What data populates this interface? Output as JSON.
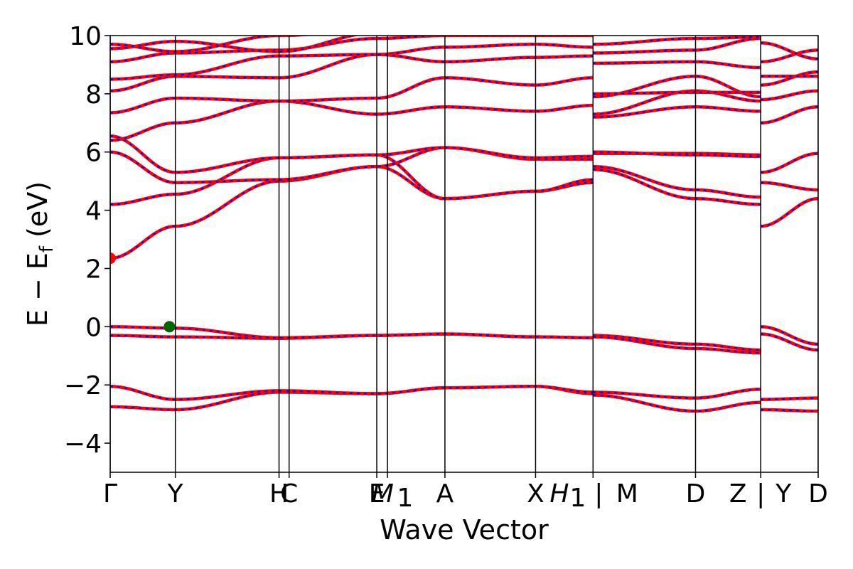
{
  "chart_data": {
    "type": "line",
    "title": "",
    "xlabel": "Wave Vector",
    "ylabel": "E − E_f (eV)",
    "ylabel_parts": {
      "main": "E − E",
      "sub": "f",
      "unit": " (eV)"
    },
    "ylim": [
      -5,
      10
    ],
    "yticks": [
      -4,
      -2,
      0,
      2,
      4,
      6,
      8,
      10
    ],
    "ytick_labels": [
      "−4",
      "−2",
      "0",
      "2",
      "4",
      "6",
      "8",
      "10"
    ],
    "xlim": [
      0,
      11.95
    ],
    "high_symmetry_points": [
      {
        "label": "Γ",
        "x": 0.0
      },
      {
        "label": "Y",
        "x": 1.1
      },
      {
        "label": "H",
        "x": 2.85
      },
      {
        "label": "C",
        "x": 3.02
      },
      {
        "label": "E",
        "x": 4.5
      },
      {
        "label": "M₁",
        "x": 4.68
      },
      {
        "label": "A",
        "x": 5.65
      },
      {
        "label": "X",
        "x": 7.18
      },
      {
        "label": "H₁ | M",
        "x": 8.15
      },
      {
        "label": "D",
        "x": 9.88
      },
      {
        "label": "Z | Y",
        "x": 10.98
      },
      {
        "label": "D",
        "x": 11.95
      }
    ],
    "tick_label_text": [
      "Γ",
      "Y",
      "H",
      "C",
      "E",
      "M",
      "1",
      "A",
      "X",
      "H",
      "1",
      "|",
      "M",
      "D",
      "Z",
      "|",
      "Y",
      "D"
    ],
    "series_style": {
      "up_color": "#ff0000",
      "down_color": "#0000ff",
      "down_dash": "4 6"
    },
    "markers": [
      {
        "name": "CBM",
        "x": 0.0,
        "y": 2.35,
        "color": "#ff0000"
      },
      {
        "name": "VBM",
        "x": 1.0,
        "y": 0.0,
        "color": "#006400"
      }
    ],
    "series": [
      {
        "values": [
          [
            0,
            -2.75
          ],
          [
            1.1,
            -2.85
          ],
          [
            2.85,
            -2.25
          ],
          [
            4.5,
            -2.3
          ],
          [
            5.65,
            -2.1
          ],
          [
            7.18,
            -2.05
          ],
          [
            8.15,
            -2.3
          ]
        ]
      },
      {
        "values": [
          [
            0,
            -2.05
          ],
          [
            1.1,
            -2.5
          ],
          [
            2.85,
            -2.2
          ],
          [
            4.5,
            -2.3
          ],
          [
            5.65,
            -2.1
          ],
          [
            7.18,
            -2.05
          ],
          [
            8.15,
            -2.25
          ]
        ]
      },
      {
        "values": [
          [
            0,
            -0.3
          ],
          [
            1.1,
            -0.35
          ],
          [
            2.85,
            -0.4
          ],
          [
            4.5,
            -0.3
          ],
          [
            5.65,
            -0.25
          ],
          [
            7.18,
            -0.35
          ],
          [
            8.15,
            -0.38
          ]
        ]
      },
      {
        "values": [
          [
            0,
            0.0
          ],
          [
            1.1,
            -0.05
          ],
          [
            2.85,
            -0.38
          ],
          [
            4.5,
            -0.3
          ],
          [
            5.65,
            -0.25
          ],
          [
            7.18,
            -0.35
          ],
          [
            8.15,
            -0.38
          ]
        ]
      },
      {
        "values": [
          [
            0,
            2.35
          ],
          [
            1.1,
            3.45
          ],
          [
            2.85,
            5.0
          ],
          [
            4.5,
            5.5
          ],
          [
            5.65,
            4.4
          ],
          [
            7.18,
            4.65
          ],
          [
            8.15,
            4.95
          ]
        ]
      },
      {
        "values": [
          [
            0,
            4.2
          ],
          [
            1.1,
            4.55
          ],
          [
            2.85,
            5.8
          ],
          [
            4.5,
            5.9
          ],
          [
            5.65,
            4.4
          ],
          [
            7.18,
            4.65
          ],
          [
            8.15,
            5.05
          ]
        ]
      },
      {
        "values": [
          [
            0,
            6.0
          ],
          [
            1.1,
            4.95
          ],
          [
            2.85,
            5.05
          ],
          [
            4.5,
            5.5
          ],
          [
            5.65,
            6.15
          ],
          [
            7.18,
            5.75
          ],
          [
            8.15,
            5.75
          ]
        ]
      },
      {
        "values": [
          [
            0,
            6.55
          ],
          [
            1.1,
            5.3
          ],
          [
            2.85,
            5.8
          ],
          [
            4.5,
            5.9
          ],
          [
            5.65,
            6.15
          ],
          [
            7.18,
            5.8
          ],
          [
            8.15,
            5.85
          ]
        ]
      },
      {
        "values": [
          [
            0,
            6.4
          ],
          [
            1.1,
            7.0
          ],
          [
            2.85,
            7.75
          ],
          [
            4.5,
            7.3
          ],
          [
            5.65,
            7.55
          ],
          [
            7.18,
            7.4
          ],
          [
            8.15,
            7.6
          ]
        ]
      },
      {
        "values": [
          [
            0,
            7.35
          ],
          [
            1.1,
            7.85
          ],
          [
            2.85,
            7.75
          ],
          [
            4.5,
            7.85
          ],
          [
            5.65,
            8.55
          ],
          [
            7.18,
            8.3
          ],
          [
            8.15,
            8.55
          ]
        ]
      },
      {
        "values": [
          [
            0,
            8.1
          ],
          [
            1.1,
            8.6
          ],
          [
            2.85,
            8.55
          ],
          [
            4.5,
            9.35
          ],
          [
            5.65,
            9.6
          ],
          [
            7.18,
            9.7
          ],
          [
            8.15,
            9.6
          ]
        ]
      },
      {
        "values": [
          [
            0,
            8.5
          ],
          [
            1.1,
            8.65
          ],
          [
            2.85,
            9.3
          ],
          [
            4.5,
            9.35
          ],
          [
            5.65,
            9.1
          ],
          [
            7.18,
            9.25
          ],
          [
            8.15,
            9.3
          ]
        ]
      },
      {
        "values": [
          [
            0,
            9.1
          ],
          [
            1.1,
            9.4
          ],
          [
            2.85,
            9.5
          ],
          [
            4.5,
            9.9
          ],
          [
            5.65,
            10.0
          ],
          [
            7.18,
            10.0
          ],
          [
            8.15,
            10.0
          ]
        ]
      },
      {
        "values": [
          [
            0,
            9.55
          ],
          [
            1.1,
            9.8
          ],
          [
            2.85,
            9.45
          ],
          [
            4.5,
            10.1
          ],
          [
            5.65,
            10.1
          ],
          [
            7.18,
            10.1
          ],
          [
            8.15,
            10.1
          ]
        ]
      },
      {
        "values": [
          [
            0,
            9.7
          ],
          [
            1.1,
            9.45
          ],
          [
            2.85,
            10.0
          ],
          [
            4.5,
            10.2
          ],
          [
            5.65,
            10.2
          ],
          [
            7.18,
            10.2
          ],
          [
            8.15,
            10.2
          ]
        ]
      },
      {
        "values": [
          [
            8.15,
            -2.25
          ],
          [
            9.88,
            -2.45
          ],
          [
            10.98,
            -2.15
          ]
        ]
      },
      {
        "values": [
          [
            8.15,
            -2.35
          ],
          [
            9.88,
            -2.9
          ],
          [
            10.98,
            -2.6
          ]
        ]
      },
      {
        "values": [
          [
            8.15,
            -0.3
          ],
          [
            9.88,
            -0.6
          ],
          [
            10.98,
            -0.8
          ]
        ]
      },
      {
        "values": [
          [
            8.15,
            -0.35
          ],
          [
            9.88,
            -0.75
          ],
          [
            10.98,
            -0.9
          ]
        ]
      },
      {
        "values": [
          [
            8.15,
            5.4
          ],
          [
            9.88,
            4.4
          ],
          [
            10.98,
            4.2
          ]
        ]
      },
      {
        "values": [
          [
            8.15,
            5.5
          ],
          [
            9.88,
            4.7
          ],
          [
            10.98,
            4.45
          ]
        ]
      },
      {
        "values": [
          [
            8.15,
            5.95
          ],
          [
            9.88,
            5.95
          ],
          [
            10.98,
            5.9
          ]
        ]
      },
      {
        "values": [
          [
            8.15,
            6.0
          ],
          [
            9.88,
            5.9
          ],
          [
            10.98,
            5.85
          ]
        ]
      },
      {
        "values": [
          [
            8.15,
            7.2
          ],
          [
            9.88,
            7.55
          ],
          [
            10.98,
            7.4
          ]
        ]
      },
      {
        "values": [
          [
            8.15,
            7.3
          ],
          [
            9.88,
            8.1
          ],
          [
            10.98,
            7.75
          ]
        ]
      },
      {
        "values": [
          [
            8.15,
            7.9
          ],
          [
            9.88,
            8.6
          ],
          [
            10.98,
            7.9
          ]
        ]
      },
      {
        "values": [
          [
            8.15,
            8.0
          ],
          [
            9.88,
            8.05
          ],
          [
            10.98,
            8.05
          ]
        ]
      },
      {
        "values": [
          [
            8.15,
            9.05
          ],
          [
            9.88,
            9.1
          ],
          [
            10.98,
            8.9
          ]
        ]
      },
      {
        "values": [
          [
            8.15,
            9.4
          ],
          [
            9.88,
            9.5
          ],
          [
            10.98,
            9.9
          ]
        ]
      },
      {
        "values": [
          [
            8.15,
            9.7
          ],
          [
            9.88,
            9.9
          ],
          [
            10.98,
            9.95
          ]
        ]
      },
      {
        "values": [
          [
            10.98,
            -2.5
          ],
          [
            11.95,
            -2.45
          ]
        ]
      },
      {
        "values": [
          [
            10.98,
            -2.85
          ],
          [
            11.95,
            -2.9
          ]
        ]
      },
      {
        "values": [
          [
            10.98,
            0.0
          ],
          [
            11.95,
            -0.6
          ]
        ]
      },
      {
        "values": [
          [
            10.98,
            -0.25
          ],
          [
            11.95,
            -0.8
          ]
        ]
      },
      {
        "values": [
          [
            10.98,
            3.45
          ],
          [
            11.95,
            4.4
          ]
        ]
      },
      {
        "values": [
          [
            10.98,
            4.95
          ],
          [
            11.95,
            4.7
          ]
        ]
      },
      {
        "values": [
          [
            10.98,
            5.3
          ],
          [
            11.95,
            5.95
          ]
        ]
      },
      {
        "values": [
          [
            10.98,
            7.0
          ],
          [
            11.95,
            7.55
          ]
        ]
      },
      {
        "values": [
          [
            10.98,
            7.8
          ],
          [
            11.95,
            8.1
          ]
        ]
      },
      {
        "values": [
          [
            10.98,
            8.3
          ],
          [
            11.95,
            8.75
          ]
        ]
      },
      {
        "values": [
          [
            10.98,
            8.6
          ],
          [
            11.95,
            8.6
          ]
        ]
      },
      {
        "values": [
          [
            10.98,
            9.1
          ],
          [
            11.95,
            9.5
          ]
        ]
      },
      {
        "values": [
          [
            10.98,
            9.75
          ],
          [
            11.95,
            9.2
          ]
        ]
      }
    ]
  }
}
